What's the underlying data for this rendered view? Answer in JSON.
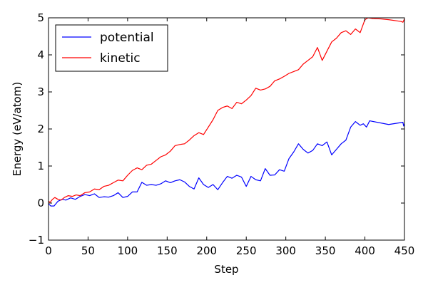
{
  "chart_data": {
    "type": "line",
    "xlabel": "Step",
    "ylabel": "Energy (eV/atom)",
    "xlim": [
      0,
      450
    ],
    "ylim": [
      -1,
      5
    ],
    "xticks": [
      0,
      50,
      100,
      150,
      200,
      250,
      300,
      350,
      400,
      450
    ],
    "yticks": [
      -1,
      0,
      1,
      2,
      3,
      4,
      5
    ],
    "grid": false,
    "legend": "top-left",
    "series": [
      {
        "name": "potential",
        "color": "#0000ff",
        "x": [
          0,
          3,
          7,
          12,
          17,
          22,
          28,
          34,
          40,
          46,
          52,
          58,
          64,
          70,
          76,
          82,
          88,
          94,
          100,
          106,
          112,
          118,
          124,
          130,
          136,
          142,
          148,
          154,
          160,
          166,
          172,
          178,
          184,
          190,
          196,
          202,
          208,
          214,
          220,
          226,
          232,
          238,
          244,
          250,
          256,
          262,
          268,
          274,
          280,
          286,
          292,
          298,
          304,
          310,
          316,
          322,
          328,
          334,
          340,
          346,
          352,
          358,
          364,
          370,
          376,
          382,
          388,
          394,
          398,
          402,
          406,
          430,
          448,
          449,
          450
        ],
        "y": [
          -0.02,
          -0.08,
          -0.08,
          0.05,
          0.1,
          0.08,
          0.14,
          0.1,
          0.18,
          0.23,
          0.2,
          0.25,
          0.15,
          0.17,
          0.16,
          0.2,
          0.28,
          0.15,
          0.18,
          0.3,
          0.3,
          0.56,
          0.48,
          0.5,
          0.48,
          0.52,
          0.6,
          0.55,
          0.6,
          0.63,
          0.57,
          0.45,
          0.38,
          0.68,
          0.5,
          0.42,
          0.5,
          0.36,
          0.55,
          0.72,
          0.67,
          0.75,
          0.7,
          0.45,
          0.72,
          0.63,
          0.6,
          0.93,
          0.75,
          0.76,
          0.9,
          0.86,
          1.2,
          1.38,
          1.6,
          1.45,
          1.35,
          1.42,
          1.6,
          1.55,
          1.65,
          1.3,
          1.45,
          1.6,
          1.7,
          2.05,
          2.2,
          2.1,
          2.14,
          2.05,
          2.22,
          2.12,
          2.18,
          2.08,
          2.14
        ]
      },
      {
        "name": "kinetic",
        "color": "#ff0000",
        "x": [
          0,
          2,
          5,
          8,
          12,
          16,
          20,
          25,
          30,
          35,
          40,
          46,
          52,
          58,
          64,
          70,
          76,
          82,
          88,
          94,
          100,
          106,
          112,
          118,
          124,
          130,
          136,
          142,
          148,
          154,
          160,
          166,
          172,
          178,
          184,
          190,
          196,
          202,
          208,
          214,
          220,
          226,
          232,
          238,
          244,
          250,
          256,
          262,
          268,
          274,
          280,
          286,
          292,
          298,
          304,
          310,
          316,
          322,
          328,
          334,
          340,
          346,
          352,
          358,
          364,
          370,
          376,
          382,
          388,
          394,
          400,
          404,
          410,
          420,
          430,
          440,
          446,
          448,
          450
        ],
        "y": [
          0.05,
          0.02,
          0.1,
          0.15,
          0.1,
          0.08,
          0.15,
          0.2,
          0.18,
          0.22,
          0.2,
          0.28,
          0.3,
          0.38,
          0.36,
          0.45,
          0.48,
          0.55,
          0.62,
          0.6,
          0.75,
          0.88,
          0.95,
          0.9,
          1.02,
          1.05,
          1.15,
          1.25,
          1.3,
          1.4,
          1.55,
          1.58,
          1.6,
          1.7,
          1.82,
          1.9,
          1.85,
          2.05,
          2.25,
          2.5,
          2.58,
          2.62,
          2.55,
          2.72,
          2.68,
          2.78,
          2.9,
          3.1,
          3.05,
          3.08,
          3.15,
          3.3,
          3.35,
          3.42,
          3.5,
          3.55,
          3.6,
          3.75,
          3.85,
          3.95,
          4.2,
          3.85,
          4.1,
          4.35,
          4.45,
          4.6,
          4.65,
          4.55,
          4.7,
          4.6,
          4.95,
          5.0,
          4.98,
          4.97,
          4.95,
          4.92,
          4.9,
          4.88,
          4.97
        ]
      }
    ]
  }
}
